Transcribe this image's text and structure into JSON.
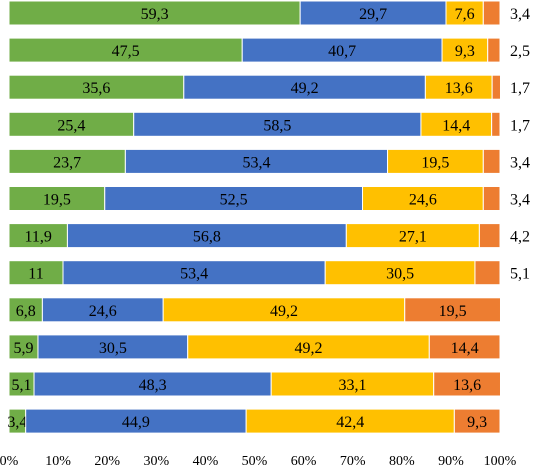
{
  "chart_data": {
    "type": "bar",
    "orientation": "horizontal",
    "stacked": true,
    "xlim": [
      0,
      100
    ],
    "x_tick_labels": [
      "0%",
      "10%",
      "20%",
      "30%",
      "40%",
      "50%",
      "60%",
      "70%",
      "80%",
      "90%",
      "100%"
    ],
    "legend": "none",
    "grid": false,
    "series": [
      {
        "color": "#70ad47",
        "values": [
          59.3,
          47.5,
          35.6,
          25.4,
          23.7,
          19.5,
          11.9,
          11,
          6.8,
          5.9,
          5.1,
          3.4
        ]
      },
      {
        "color": "#4472c4",
        "values": [
          29.7,
          40.7,
          49.2,
          58.5,
          53.4,
          52.5,
          56.8,
          53.4,
          24.6,
          30.5,
          48.3,
          44.9
        ]
      },
      {
        "color": "#ffc000",
        "values": [
          7.6,
          9.3,
          13.6,
          14.4,
          19.5,
          24.6,
          27.1,
          30.5,
          49.2,
          49.2,
          33.1,
          42.4
        ]
      },
      {
        "color": "#ed7d31",
        "values": [
          3.4,
          2.5,
          1.7,
          1.7,
          3.4,
          3.4,
          4.2,
          5.1,
          19.5,
          14.4,
          13.6,
          9.3
        ]
      }
    ]
  }
}
